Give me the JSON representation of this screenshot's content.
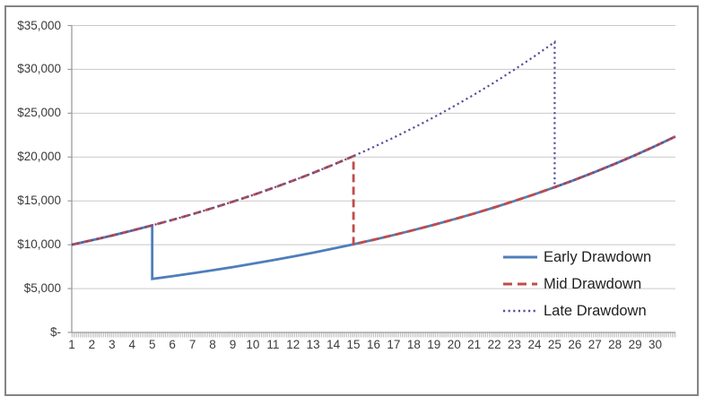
{
  "chart_data": {
    "type": "line",
    "title": "",
    "xlabel": "",
    "ylabel": "",
    "x_range": [
      1,
      31
    ],
    "ylim": [
      0,
      35000
    ],
    "grid": "horizontal",
    "legend_position": "inside-bottom-right",
    "x_tick_labels": [
      "1",
      "2",
      "3",
      "4",
      "5",
      "6",
      "7",
      "8",
      "9",
      "10",
      "11",
      "12",
      "13",
      "14",
      "15",
      "16",
      "17",
      "18",
      "19",
      "20",
      "21",
      "22",
      "23",
      "24",
      "25",
      "26",
      "27",
      "28",
      "29",
      "30"
    ],
    "y_ticks": [
      {
        "label": "$-",
        "value": 0
      },
      {
        "label": "$5,000",
        "value": 5000
      },
      {
        "label": "$10,000",
        "value": 10000
      },
      {
        "label": "$15,000",
        "value": 15000
      },
      {
        "label": "$20,000",
        "value": 20000
      },
      {
        "label": "$25,000",
        "value": 25000
      },
      {
        "label": "$30,000",
        "value": 30000
      },
      {
        "label": "$35,000",
        "value": 35000
      }
    ],
    "series": [
      {
        "name": "Early Drawdown",
        "color": "#4E7EBB",
        "style": "solid",
        "points": [
          [
            1,
            10000
          ],
          [
            2,
            10512
          ],
          [
            3,
            11049
          ],
          [
            4,
            11615
          ],
          [
            5,
            12209
          ],
          [
            5,
            6104
          ],
          [
            6,
            6417
          ],
          [
            7,
            6745
          ],
          [
            8,
            7090
          ],
          [
            9,
            7453
          ],
          [
            10,
            7834
          ],
          [
            11,
            8235
          ],
          [
            12,
            8657
          ],
          [
            13,
            9099
          ],
          [
            14,
            9565
          ],
          [
            15,
            10054
          ],
          [
            16,
            10569
          ],
          [
            17,
            11109
          ],
          [
            18,
            11678
          ],
          [
            19,
            12275
          ],
          [
            20,
            12903
          ],
          [
            21,
            13564
          ],
          [
            22,
            14257
          ],
          [
            23,
            14987
          ],
          [
            24,
            15754
          ],
          [
            25,
            16560
          ],
          [
            26,
            17407
          ],
          [
            27,
            18298
          ],
          [
            28,
            19234
          ],
          [
            29,
            20218
          ],
          [
            30,
            21252
          ],
          [
            31,
            22339
          ]
        ]
      },
      {
        "name": "Mid Drawdown",
        "color": "#BF4C4A",
        "style": "dashed",
        "points": [
          [
            1,
            10000
          ],
          [
            2,
            10512
          ],
          [
            3,
            11049
          ],
          [
            4,
            11615
          ],
          [
            5,
            12209
          ],
          [
            6,
            12834
          ],
          [
            7,
            13490
          ],
          [
            8,
            14181
          ],
          [
            9,
            14906
          ],
          [
            10,
            15669
          ],
          [
            11,
            16470
          ],
          [
            12,
            17313
          ],
          [
            13,
            18199
          ],
          [
            14,
            19130
          ],
          [
            15,
            20109
          ],
          [
            15,
            10054
          ],
          [
            16,
            10569
          ],
          [
            17,
            11109
          ],
          [
            18,
            11678
          ],
          [
            19,
            12275
          ],
          [
            20,
            12903
          ],
          [
            21,
            13564
          ],
          [
            22,
            14257
          ],
          [
            23,
            14987
          ],
          [
            24,
            15754
          ],
          [
            25,
            16560
          ],
          [
            26,
            17407
          ],
          [
            27,
            18298
          ],
          [
            28,
            19234
          ],
          [
            29,
            20218
          ],
          [
            30,
            21252
          ],
          [
            31,
            22339
          ]
        ]
      },
      {
        "name": "Late Drawdown",
        "color": "#54519E",
        "style": "dotted",
        "points": [
          [
            1,
            10000
          ],
          [
            2,
            10512
          ],
          [
            3,
            11049
          ],
          [
            4,
            11615
          ],
          [
            5,
            12209
          ],
          [
            6,
            12834
          ],
          [
            7,
            13490
          ],
          [
            8,
            14181
          ],
          [
            9,
            14906
          ],
          [
            10,
            15669
          ],
          [
            11,
            16470
          ],
          [
            12,
            17313
          ],
          [
            13,
            18199
          ],
          [
            14,
            19130
          ],
          [
            15,
            20109
          ],
          [
            16,
            21138
          ],
          [
            17,
            22219
          ],
          [
            18,
            23356
          ],
          [
            19,
            24551
          ],
          [
            20,
            25807
          ],
          [
            21,
            27127
          ],
          [
            22,
            28515
          ],
          [
            23,
            29974
          ],
          [
            24,
            31507
          ],
          [
            25,
            33119
          ],
          [
            25,
            16560
          ],
          [
            26,
            17407
          ],
          [
            27,
            18298
          ],
          [
            28,
            19234
          ],
          [
            29,
            20218
          ],
          [
            30,
            21252
          ],
          [
            31,
            22339
          ]
        ]
      }
    ],
    "colors": {
      "gridline": "#C9C9C9",
      "axis": "#9B9B9B",
      "minor_tick": "#909090",
      "border": "#848484",
      "label_text": "#3B3B3B"
    }
  }
}
